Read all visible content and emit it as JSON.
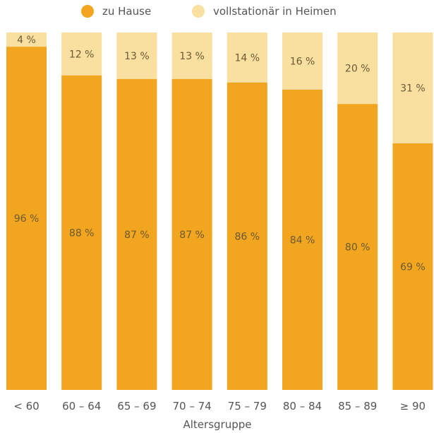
{
  "colors": {
    "zu_hause": "#f2a51f",
    "heime": "#fae0a0",
    "text": "#555555"
  },
  "chart_data": {
    "type": "bar",
    "stacked": true,
    "percent": true,
    "categories": [
      "< 60",
      "60 – 64",
      "65 – 69",
      "70 – 74",
      "75 – 79",
      "80 – 84",
      "85 – 89",
      "≥ 90"
    ],
    "series": [
      {
        "name": "zu Hause",
        "values": [
          96,
          88,
          87,
          87,
          86,
          84,
          80,
          69
        ],
        "labels": [
          "96 %",
          "88 %",
          "87 %",
          "87 %",
          "86 %",
          "84 %",
          "80 %",
          "69 %"
        ]
      },
      {
        "name": "vollstationär in Heimen",
        "values": [
          4,
          12,
          13,
          13,
          14,
          16,
          20,
          31
        ],
        "labels": [
          "4 %",
          "12 %",
          "13 %",
          "13 %",
          "14 %",
          "16 %",
          "20 %",
          "31 %"
        ]
      }
    ],
    "xlabel": "Altersgruppe",
    "ylabel": "",
    "ylim": [
      0,
      100
    ],
    "grid": false,
    "legend_position": "top"
  }
}
